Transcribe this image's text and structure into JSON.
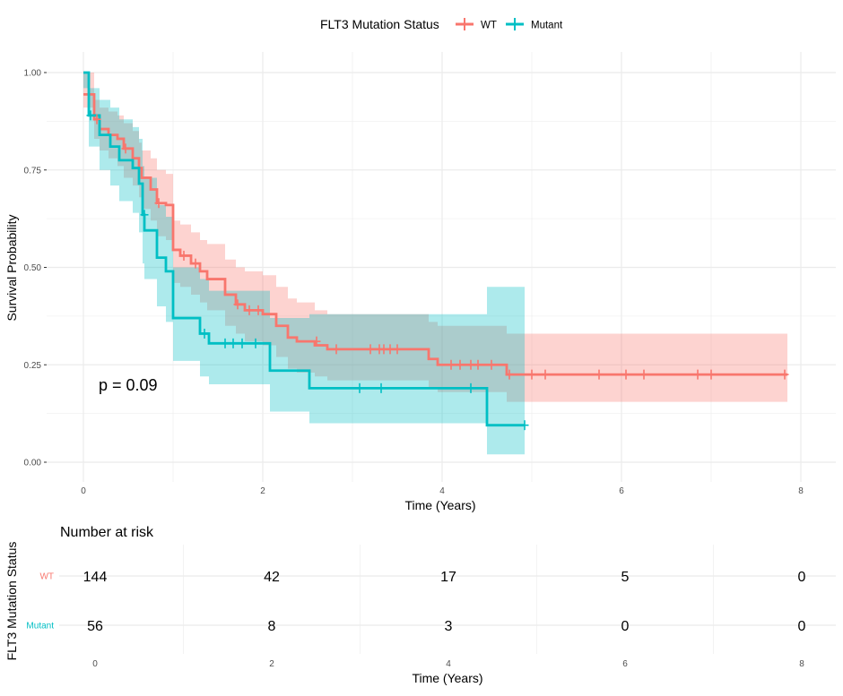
{
  "colors": {
    "wt": "#F8766D",
    "mutant": "#00BFC4",
    "grid": "#EBEBEB",
    "text": "#000000",
    "tick_text": "#4D4D4D"
  },
  "legend": {
    "title": "FLT3 Mutation Status",
    "entries": [
      {
        "label": "WT",
        "color": "#F8766D"
      },
      {
        "label": "Mutant",
        "color": "#00BFC4"
      }
    ],
    "placement": "top"
  },
  "chart_data": [
    {
      "type": "line",
      "subtype": "kaplan-meier",
      "xlabel": "Time (Years)",
      "ylabel": "Survival Probability",
      "xlim": [
        0,
        8
      ],
      "ylim": [
        0,
        1
      ],
      "x_ticks": [
        "0",
        "2",
        "4",
        "6",
        "8"
      ],
      "y_ticks": [
        "0.00",
        "0.25",
        "0.50",
        "0.75",
        "1.00"
      ],
      "grid": true,
      "annotation": "p = 0.09",
      "series": [
        {
          "name": "WT",
          "steps": [
            [
              0,
              0.944
            ],
            [
              0.12,
              0.88
            ],
            [
              0.18,
              0.855
            ],
            [
              0.28,
              0.84
            ],
            [
              0.38,
              0.83
            ],
            [
              0.45,
              0.805
            ],
            [
              0.55,
              0.78
            ],
            [
              0.62,
              0.755
            ],
            [
              0.65,
              0.73
            ],
            [
              0.75,
              0.7
            ],
            [
              0.82,
              0.665
            ],
            [
              0.92,
              0.66
            ],
            [
              1.0,
              0.545
            ],
            [
              1.08,
              0.53
            ],
            [
              1.2,
              0.51
            ],
            [
              1.3,
              0.49
            ],
            [
              1.38,
              0.47
            ],
            [
              1.58,
              0.43
            ],
            [
              1.7,
              0.405
            ],
            [
              1.8,
              0.39
            ],
            [
              2.0,
              0.38
            ],
            [
              2.15,
              0.35
            ],
            [
              2.28,
              0.32
            ],
            [
              2.38,
              0.31
            ],
            [
              2.58,
              0.3
            ],
            [
              2.72,
              0.29
            ],
            [
              3.85,
              0.265
            ],
            [
              3.95,
              0.25
            ],
            [
              4.72,
              0.225
            ],
            [
              7.85,
              0.225
            ]
          ],
          "ci_upper": [
            [
              0,
              1.0
            ],
            [
              0.12,
              0.93
            ],
            [
              0.18,
              0.91
            ],
            [
              0.28,
              0.9
            ],
            [
              0.38,
              0.89
            ],
            [
              0.45,
              0.87
            ],
            [
              0.55,
              0.85
            ],
            [
              0.62,
              0.82
            ],
            [
              0.65,
              0.8
            ],
            [
              0.75,
              0.78
            ],
            [
              0.82,
              0.75
            ],
            [
              0.92,
              0.74
            ],
            [
              1.0,
              0.62
            ],
            [
              1.08,
              0.61
            ],
            [
              1.2,
              0.59
            ],
            [
              1.3,
              0.57
            ],
            [
              1.38,
              0.56
            ],
            [
              1.58,
              0.52
            ],
            [
              1.7,
              0.5
            ],
            [
              1.8,
              0.49
            ],
            [
              2.0,
              0.48
            ],
            [
              2.15,
              0.45
            ],
            [
              2.28,
              0.42
            ],
            [
              2.38,
              0.41
            ],
            [
              2.58,
              0.39
            ],
            [
              2.72,
              0.38
            ],
            [
              3.85,
              0.36
            ],
            [
              3.95,
              0.35
            ],
            [
              4.72,
              0.33
            ],
            [
              7.85,
              0.33
            ]
          ],
          "ci_lower": [
            [
              0,
              0.91
            ],
            [
              0.12,
              0.83
            ],
            [
              0.18,
              0.8
            ],
            [
              0.28,
              0.78
            ],
            [
              0.38,
              0.76
            ],
            [
              0.45,
              0.73
            ],
            [
              0.55,
              0.71
            ],
            [
              0.62,
              0.68
            ],
            [
              0.65,
              0.65
            ],
            [
              0.75,
              0.62
            ],
            [
              0.82,
              0.58
            ],
            [
              0.92,
              0.57
            ],
            [
              1.0,
              0.46
            ],
            [
              1.08,
              0.45
            ],
            [
              1.2,
              0.43
            ],
            [
              1.3,
              0.41
            ],
            [
              1.38,
              0.39
            ],
            [
              1.58,
              0.35
            ],
            [
              1.7,
              0.33
            ],
            [
              1.8,
              0.31
            ],
            [
              2.0,
              0.3
            ],
            [
              2.15,
              0.27
            ],
            [
              2.28,
              0.24
            ],
            [
              2.38,
              0.23
            ],
            [
              2.58,
              0.22
            ],
            [
              2.72,
              0.21
            ],
            [
              3.85,
              0.19
            ],
            [
              3.95,
              0.18
            ],
            [
              4.72,
              0.155
            ],
            [
              7.85,
              0.155
            ]
          ],
          "censored": [
            [
              0.15,
              0.88
            ],
            [
              0.47,
              0.805
            ],
            [
              0.84,
              0.665
            ],
            [
              1.12,
              0.53
            ],
            [
              1.25,
              0.51
            ],
            [
              1.72,
              0.405
            ],
            [
              1.85,
              0.39
            ],
            [
              1.95,
              0.39
            ],
            [
              2.6,
              0.31
            ],
            [
              2.82,
              0.29
            ],
            [
              3.2,
              0.29
            ],
            [
              3.3,
              0.29
            ],
            [
              3.35,
              0.29
            ],
            [
              3.42,
              0.29
            ],
            [
              3.5,
              0.29
            ],
            [
              4.1,
              0.25
            ],
            [
              4.2,
              0.25
            ],
            [
              4.32,
              0.25
            ],
            [
              4.4,
              0.25
            ],
            [
              4.55,
              0.25
            ],
            [
              4.75,
              0.225
            ],
            [
              5.0,
              0.225
            ],
            [
              5.15,
              0.225
            ],
            [
              5.75,
              0.225
            ],
            [
              6.05,
              0.225
            ],
            [
              6.25,
              0.225
            ],
            [
              6.85,
              0.225
            ],
            [
              7.0,
              0.225
            ],
            [
              7.82,
              0.225
            ]
          ]
        },
        {
          "name": "Mutant",
          "steps": [
            [
              0,
              1.0
            ],
            [
              0.06,
              0.89
            ],
            [
              0.18,
              0.84
            ],
            [
              0.3,
              0.81
            ],
            [
              0.4,
              0.775
            ],
            [
              0.55,
              0.755
            ],
            [
              0.62,
              0.715
            ],
            [
              0.66,
              0.635
            ],
            [
              0.68,
              0.595
            ],
            [
              0.82,
              0.525
            ],
            [
              0.92,
              0.49
            ],
            [
              1.0,
              0.37
            ],
            [
              1.3,
              0.33
            ],
            [
              1.4,
              0.305
            ],
            [
              2.08,
              0.235
            ],
            [
              2.52,
              0.19
            ],
            [
              4.5,
              0.095
            ],
            [
              4.92,
              0.095
            ]
          ],
          "ci_upper": [
            [
              0,
              1.0
            ],
            [
              0.06,
              0.96
            ],
            [
              0.18,
              0.93
            ],
            [
              0.3,
              0.91
            ],
            [
              0.4,
              0.88
            ],
            [
              0.55,
              0.86
            ],
            [
              0.62,
              0.83
            ],
            [
              0.66,
              0.76
            ],
            [
              0.68,
              0.73
            ],
            [
              0.82,
              0.66
            ],
            [
              0.92,
              0.63
            ],
            [
              1.0,
              0.5
            ],
            [
              1.3,
              0.47
            ],
            [
              1.4,
              0.44
            ],
            [
              2.08,
              0.37
            ],
            [
              2.52,
              0.38
            ],
            [
              4.5,
              0.45
            ],
            [
              4.92,
              0.45
            ]
          ],
          "ci_lower": [
            [
              0,
              0.96
            ],
            [
              0.06,
              0.81
            ],
            [
              0.18,
              0.75
            ],
            [
              0.3,
              0.71
            ],
            [
              0.4,
              0.67
            ],
            [
              0.55,
              0.64
            ],
            [
              0.62,
              0.59
            ],
            [
              0.66,
              0.51
            ],
            [
              0.68,
              0.47
            ],
            [
              0.82,
              0.4
            ],
            [
              0.92,
              0.36
            ],
            [
              1.0,
              0.26
            ],
            [
              1.3,
              0.22
            ],
            [
              1.4,
              0.2
            ],
            [
              2.08,
              0.13
            ],
            [
              2.52,
              0.1
            ],
            [
              4.5,
              0.02
            ],
            [
              4.92,
              0.02
            ]
          ],
          "censored": [
            [
              0.08,
              0.89
            ],
            [
              0.68,
              0.635
            ],
            [
              1.35,
              0.33
            ],
            [
              1.58,
              0.305
            ],
            [
              1.67,
              0.305
            ],
            [
              1.77,
              0.305
            ],
            [
              1.92,
              0.305
            ],
            [
              3.08,
              0.19
            ],
            [
              3.32,
              0.19
            ],
            [
              4.32,
              0.19
            ],
            [
              4.92,
              0.095
            ]
          ]
        }
      ]
    },
    {
      "type": "table",
      "title": "Number at risk",
      "ylabel": "FLT3 Mutation Status",
      "xlabel": "Time (Years)",
      "x_ticks": [
        "0",
        "2",
        "4",
        "6",
        "8"
      ],
      "times": [
        0,
        2,
        4,
        6,
        8
      ],
      "rows": [
        {
          "name": "WT",
          "counts": [
            "144",
            "42",
            "17",
            "5",
            "0"
          ]
        },
        {
          "name": "Mutant",
          "counts": [
            "56",
            "8",
            "3",
            "0",
            "0"
          ]
        }
      ]
    }
  ]
}
